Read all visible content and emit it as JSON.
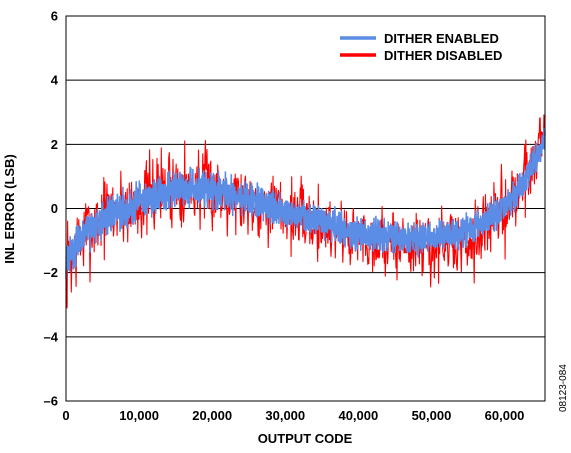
{
  "chart_data": {
    "type": "line",
    "title": "",
    "xlabel": "OUTPUT CODE",
    "ylabel": "INL ERROR (LSB)",
    "xlim": [
      0,
      65536
    ],
    "ylim": [
      -6,
      6
    ],
    "x_ticks": [
      0,
      10000,
      20000,
      30000,
      40000,
      50000,
      60000
    ],
    "x_tick_labels": [
      "0",
      "10,000",
      "20,000",
      "30,000",
      "40,000",
      "50,000",
      "60,000"
    ],
    "y_ticks": [
      -6,
      -4,
      -2,
      0,
      2,
      4,
      6
    ],
    "y_tick_labels": [
      "–6",
      "–4",
      "–2",
      "0",
      "2",
      "4",
      "6"
    ],
    "grid": "horizontal",
    "legend_position": "top-right",
    "figure_id": "08123-084",
    "series": [
      {
        "name": "DITHER DISABLED",
        "color": "#ff0000",
        "envelope": {
          "x": [
            0,
            2000,
            5000,
            10000,
            15000,
            20000,
            25000,
            30000,
            35000,
            40000,
            45000,
            50000,
            55000,
            60000,
            63000,
            65536
          ],
          "trend": [
            -1.8,
            -1.0,
            -0.2,
            0.2,
            0.8,
            0.6,
            0.3,
            -0.1,
            -0.5,
            -0.9,
            -1.1,
            -1.2,
            -1.0,
            0.0,
            1.0,
            2.5
          ],
          "noise": [
            2.0,
            2.0,
            1.8,
            1.8,
            2.0,
            1.8,
            1.6,
            1.6,
            1.6,
            1.6,
            1.6,
            1.6,
            1.6,
            1.8,
            1.8,
            1.6
          ]
        }
      },
      {
        "name": "DITHER ENABLED",
        "color": "#5b8ce6",
        "envelope": {
          "x": [
            0,
            2000,
            5000,
            10000,
            15000,
            20000,
            25000,
            30000,
            35000,
            40000,
            45000,
            50000,
            55000,
            60000,
            63000,
            65536
          ],
          "trend": [
            -1.6,
            -0.9,
            -0.3,
            0.2,
            0.6,
            0.6,
            0.3,
            -0.1,
            -0.4,
            -0.8,
            -0.9,
            -0.9,
            -0.7,
            0.0,
            0.9,
            2.2
          ],
          "noise": [
            0.8,
            0.8,
            0.8,
            0.8,
            0.8,
            0.8,
            0.8,
            0.7,
            0.7,
            0.7,
            0.7,
            0.7,
            0.7,
            0.7,
            0.7,
            0.6
          ]
        }
      }
    ]
  }
}
